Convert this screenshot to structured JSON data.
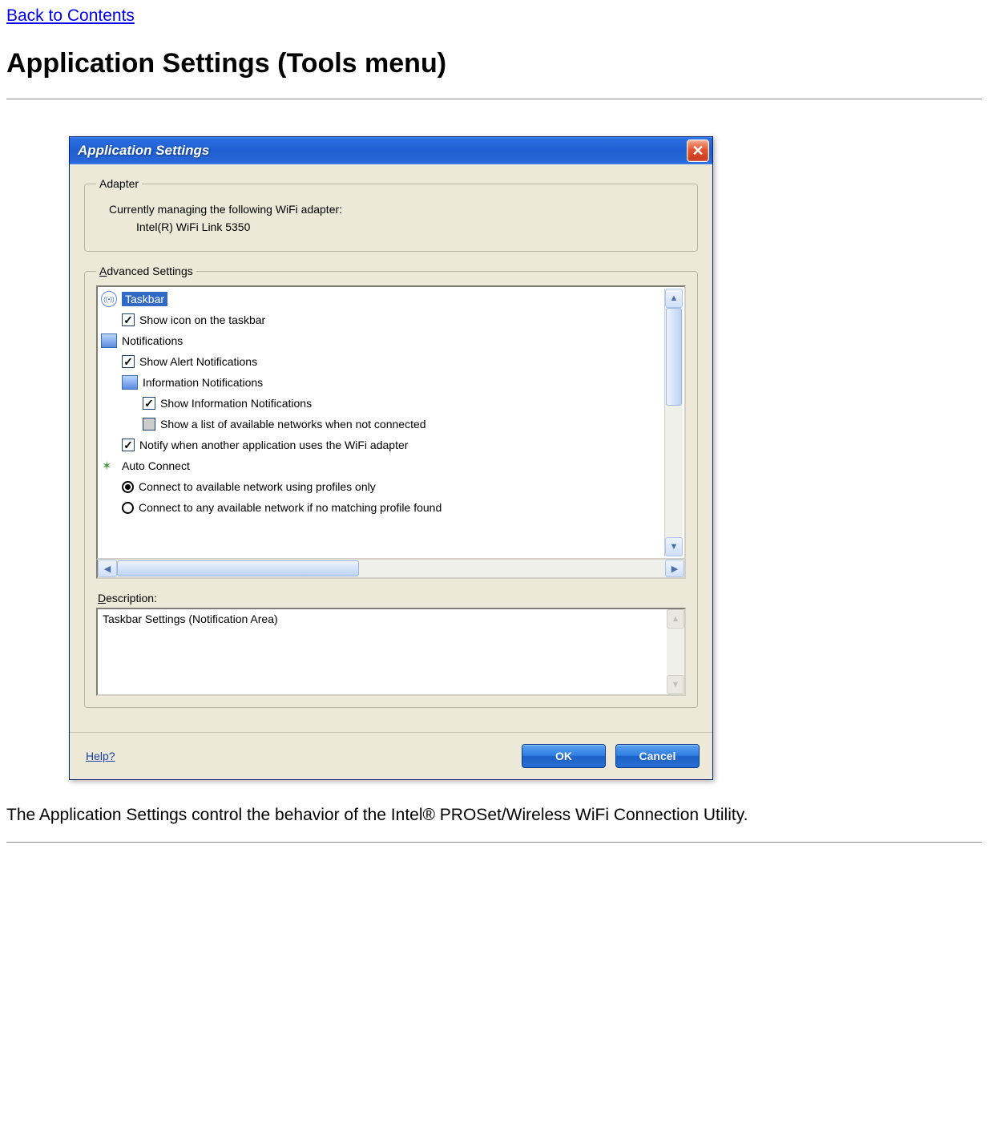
{
  "page": {
    "back_link": "Back to Contents",
    "heading": "Application Settings (Tools menu)",
    "body_text": "The Application Settings control the behavior of the Intel® PROSet/Wireless WiFi Connection Utility."
  },
  "dialog": {
    "title": "Application Settings",
    "titlebar_bg_colors": [
      "#3a80f4",
      "#1f5fd0"
    ],
    "close_bg_colors": [
      "#f5a58a",
      "#c8351a"
    ],
    "body_bg": "#ece9d8",
    "adapter": {
      "legend": "Adapter",
      "line1": "Currently managing the following WiFi adapter:",
      "line2": "Intel(R) WiFi Link 5350"
    },
    "advanced": {
      "legend": "Advanced Settings",
      "items": [
        {
          "type": "section",
          "icon": "wifi",
          "label": "Taskbar",
          "selected": true
        },
        {
          "type": "check",
          "indent": 1,
          "checked": true,
          "label": "Show icon on the taskbar"
        },
        {
          "type": "section",
          "icon": "notif",
          "label": "Notifications"
        },
        {
          "type": "check",
          "indent": 1,
          "checked": true,
          "label": "Show Alert Notifications"
        },
        {
          "type": "subsection",
          "icon": "notif",
          "indent": 1,
          "label": "Information Notifications"
        },
        {
          "type": "check",
          "indent": 2,
          "checked": true,
          "label": "Show Information Notifications"
        },
        {
          "type": "check",
          "indent": 2,
          "checked": false,
          "greyed": true,
          "label": "Show a list of available networks when not connected"
        },
        {
          "type": "check",
          "indent": 1,
          "checked": true,
          "label": "Notify when another application uses the WiFi adapter"
        },
        {
          "type": "section",
          "icon": "auto",
          "label": "Auto Connect"
        },
        {
          "type": "radio",
          "indent": 1,
          "checked": true,
          "label": "Connect to available network using profiles only"
        },
        {
          "type": "radio",
          "indent": 1,
          "checked": false,
          "label": "Connect to any available network if no matching profile found"
        }
      ],
      "desc_label": "Description:",
      "desc_text": "Taskbar Settings (Notification Area)"
    },
    "footer": {
      "help": "Help?",
      "ok": "OK",
      "cancel": "Cancel"
    }
  }
}
